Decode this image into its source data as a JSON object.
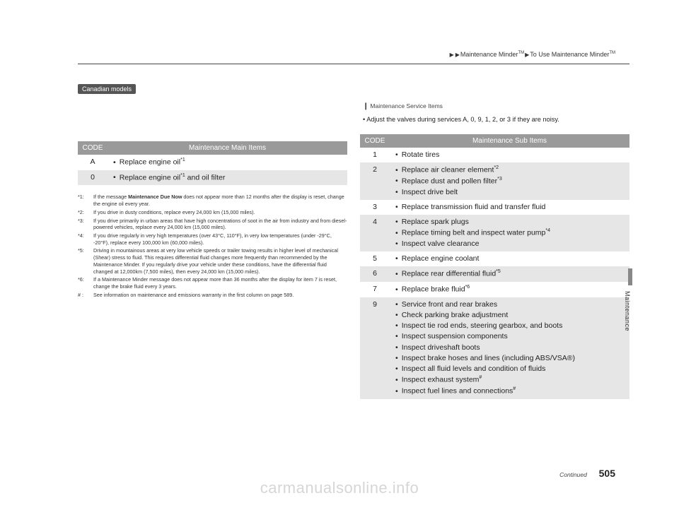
{
  "breadcrumb": {
    "a": "Maintenance Minder",
    "tm": "TM",
    "b": "To Use Maintenance Minder",
    "arrow": "▶"
  },
  "badge": "Canadian models",
  "serviceNote": {
    "header": "Maintenance Service Items",
    "linkIcon": "❙",
    "body": "• Adjust the valves during services A, 0, 9, 1, 2, or 3 if they are noisy."
  },
  "mainTable": {
    "head": {
      "code": "CODE",
      "title": "Maintenance Main Items"
    },
    "rows": [
      {
        "code": "A",
        "items": [
          "Replace engine oil*1"
        ],
        "alt": false
      },
      {
        "code": "0",
        "items": [
          "Replace engine oil*1 and oil filter"
        ],
        "alt": true
      }
    ]
  },
  "subTable": {
    "head": {
      "code": "CODE",
      "title": "Maintenance Sub Items"
    },
    "rows": [
      {
        "code": "1",
        "items": [
          "Rotate tires"
        ],
        "alt": false
      },
      {
        "code": "2",
        "items": [
          "Replace air cleaner element*2",
          "Replace dust and pollen filter*3",
          "Inspect drive belt"
        ],
        "alt": true
      },
      {
        "code": "3",
        "items": [
          "Replace transmission fluid and transfer fluid"
        ],
        "alt": false
      },
      {
        "code": "4",
        "items": [
          "Replace spark plugs",
          "Replace timing belt and inspect water pump*4",
          "Inspect valve clearance"
        ],
        "alt": true
      },
      {
        "code": "5",
        "items": [
          "Replace engine coolant"
        ],
        "alt": false
      },
      {
        "code": "6",
        "items": [
          "Replace rear differential fluid*5"
        ],
        "alt": true
      },
      {
        "code": "7",
        "items": [
          "Replace brake fluid*6"
        ],
        "alt": false
      },
      {
        "code": "9",
        "items": [
          "Service front and rear brakes",
          "Check parking brake adjustment",
          "Inspect tie rod ends, steering gearbox, and boots",
          "Inspect suspension components",
          "Inspect driveshaft boots",
          "Inspect brake hoses and lines (including ABS/VSA®)",
          "Inspect all fluid levels and condition of fluids",
          "Inspect exhaust system#",
          "Inspect fuel lines and connections#"
        ],
        "alt": true
      }
    ]
  },
  "footnotes": [
    {
      "lbl": "*1:",
      "txt": "If the message Maintenance Due Now does not appear more than 12 months after the display is reset, change the engine oil every year."
    },
    {
      "lbl": "*2:",
      "txt": "If you drive in dusty conditions, replace every 24,000 km (15,000 miles)."
    },
    {
      "lbl": "*3:",
      "txt": "If you drive primarily in urban areas that have high concentrations of soot in the air from industry and from diesel-powered vehicles, replace every 24,000 km (15,000 miles)."
    },
    {
      "lbl": "*4:",
      "txt": "If you drive regularly in very high temperatures (over 43°C, 110°F), in very low temperatures (under -29°C, -20°F), replace every 100,000 km (60,000 miles)."
    },
    {
      "lbl": "*5:",
      "txt": "Driving in mountainous areas at very low vehicle speeds or trailer towing results in higher level of mechanical (Shear) stress to fluid. This requires differential fluid changes more frequently than recommended by the Maintenance Minder. If you regularly drive your vehicle under these conditions, have the differential fluid changed at 12,000km (7,500 miles), then every 24,000 km (15,000 miles)."
    },
    {
      "lbl": "*6:",
      "txt": "If a Maintenance Minder message does not appear more than 36 months after the display for item 7 is reset, change the brake fluid every 3 years."
    },
    {
      "lbl": "# :",
      "txt": "See information on maintenance and emissions warranty in the first column on page 589."
    }
  ],
  "sideTab": "Maintenance",
  "footer": {
    "continued": "Continued",
    "page": "505"
  },
  "watermark": "carmanualsonline.info"
}
